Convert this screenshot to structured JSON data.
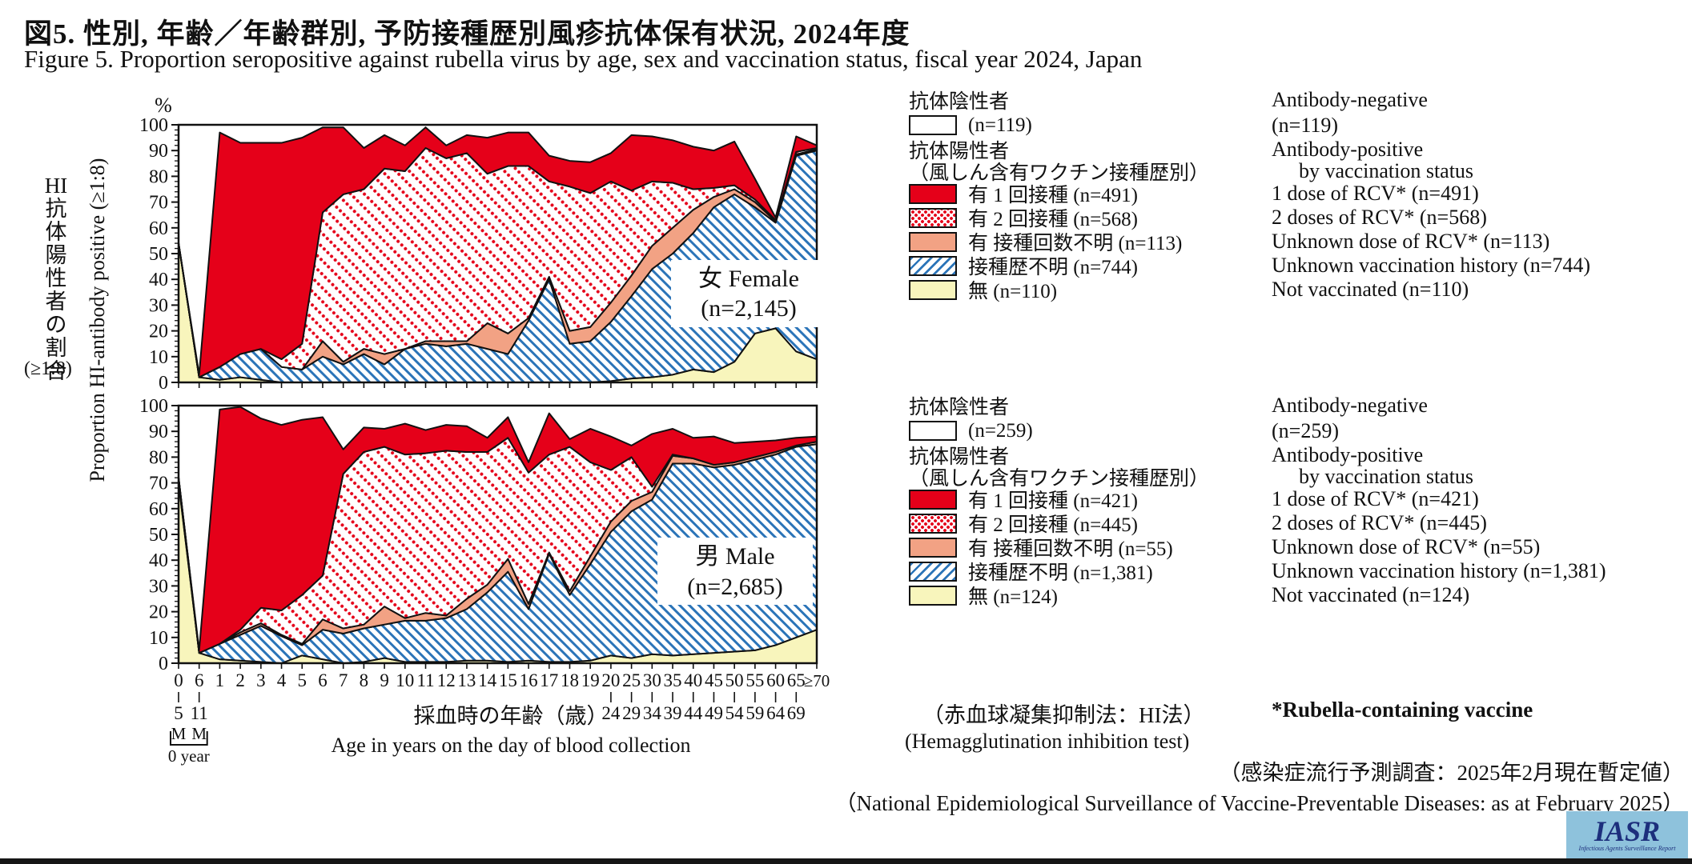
{
  "title": {
    "jp": "図5. 性別, 年齢／年齢群別, 予防接種歴別風疹抗体保有状況, 2024年度",
    "en": "Figure 5. Proportion seropositive against rubella virus by age, sex and vaccination status, fiscal year 2024, Japan"
  },
  "y_axis": {
    "unit": "%",
    "label_jp_head": "HI",
    "label_jp_chars": [
      "抗",
      "体",
      "陽",
      "性",
      "者",
      "の",
      "割",
      "合"
    ],
    "label_jp_suffix": "(≥1:8)",
    "label_en": "Proportion HI-antibody positive (≥1:8)",
    "max": 100,
    "tick_step": 10,
    "minor_step": 2
  },
  "x_axis": {
    "title_jp": "採血時の年齢（歳）",
    "title_en": "Age in years on the day of blood collection",
    "zero_year": "0 year",
    "month_mark": "M",
    "sub_labels": {
      "0": "5",
      "1": "11",
      "21": "24",
      "22": "29",
      "23": "34",
      "24": "39",
      "25": "44",
      "26": "49",
      "27": "54",
      "28": "59",
      "29": "64",
      "30": "69"
    }
  },
  "charts": [
    {
      "label": "女 Female",
      "n_label": "(n=2,145)"
    },
    {
      "label": "男 Male",
      "n_label": "(n=2,685)"
    }
  ],
  "legend": {
    "female": {
      "neg_jp": "抗体陰性者",
      "neg_en": "Antibody-negative",
      "neg_n_jp": "(n=119)",
      "neg_n_en": "(n=119)",
      "pos_jp": "抗体陽性者",
      "pos_en": "Antibody-positive",
      "pos_sub_jp": "（風しん含有ワクチン接種歴別）",
      "pos_sub_en": "by vaccination status",
      "items": [
        {
          "swatch": "red-solid",
          "jp": "有 1 回接種 (n=491)",
          "en": "1 dose of RCV* (n=491)"
        },
        {
          "swatch": "red-dots",
          "jp": "有 2 回接種 (n=568)",
          "en": "2 doses of RCV* (n=568)"
        },
        {
          "swatch": "salmon",
          "jp": "有 接種回数不明 (n=113)",
          "en": "Unknown dose of RCV* (n=113)"
        },
        {
          "swatch": "blue-hatch",
          "jp": "接種歴不明 (n=744)",
          "en": "Unknown vaccination history (n=744)"
        },
        {
          "swatch": "yellow",
          "jp": "無 (n=110)",
          "en": "Not vaccinated (n=110)"
        }
      ]
    },
    "male": {
      "neg_jp": "抗体陰性者",
      "neg_en": "Antibody-negative",
      "neg_n_jp": "(n=259)",
      "neg_n_en": "(n=259)",
      "pos_jp": "抗体陽性者",
      "pos_en": "Antibody-positive",
      "pos_sub_jp": "（風しん含有ワクチン接種歴別）",
      "pos_sub_en": "by vaccination status",
      "items": [
        {
          "swatch": "red-solid",
          "jp": "有 1 回接種 (n=421)",
          "en": "1 dose of RCV* (n=421)"
        },
        {
          "swatch": "red-dots",
          "jp": "有 2 回接種 (n=445)",
          "en": "2 doses of RCV* (n=445)"
        },
        {
          "swatch": "salmon",
          "jp": "有 接種回数不明 (n=55)",
          "en": "Unknown dose of RCV* (n=55)"
        },
        {
          "swatch": "blue-hatch",
          "jp": "接種歴不明 (n=1,381)",
          "en": "Unknown vaccination history (n=1,381)"
        },
        {
          "swatch": "yellow",
          "jp": "無 (n=124)",
          "en": "Not vaccinated (n=124)"
        }
      ]
    },
    "note_hi_jp": "（赤血球凝集抑制法：HI法）",
    "note_hi_en": "(Hemagglutination inhibition test)",
    "note_rcv": "*Rubella-containing vaccine"
  },
  "footer": {
    "jp": "（感染症流行予測調査：2025年2月現在暫定値）",
    "en": "（National Epidemiological Surveillance of Vaccine-Preventable Diseases: as at February 2025）"
  },
  "logo": {
    "text": "IASR",
    "subtext": "Infectious Agents Surveillance Report"
  },
  "colors": {
    "one_dose_red": "#e50019",
    "unknown_dose_salmon": "#f2a284",
    "not_vaccinated_yellow": "#f8f5bc",
    "hatch_blue": "#2b74b8",
    "outline": "#111111",
    "logo_bg": "#8ec2dc",
    "logo_text": "#1d2f7c"
  },
  "chart_data": [
    {
      "type": "area",
      "title": "女 Female (n=2,145)",
      "stack_order": "bottom-to-top",
      "categories": [
        "0",
        "6",
        "1",
        "2",
        "3",
        "4",
        "5",
        "6",
        "7",
        "8",
        "9",
        "10",
        "11",
        "12",
        "13",
        "14",
        "15",
        "16",
        "17",
        "18",
        "19",
        "20",
        "25",
        "30",
        "35",
        "40",
        "45",
        "50",
        "55",
        "60",
        "65",
        "≥70"
      ],
      "category_notes": "first two categories are 0-5 months and 6-11 months of age; 20+ are 5-year groups (20-24 ... 65-69, ≥70)",
      "ylabel": "Proportion HI-antibody positive (≥1:8) %",
      "ylim": [
        0,
        100
      ],
      "series": [
        {
          "name": "Not vaccinated",
          "values": [
            54,
            2,
            1,
            2,
            1,
            0,
            0,
            0,
            0,
            0,
            0,
            0,
            0,
            0,
            0,
            0,
            0,
            0,
            0,
            0,
            0,
            0.5,
            1.5,
            2,
            3,
            5,
            4,
            8,
            19,
            21,
            12,
            9
          ]
        },
        {
          "name": "Unknown vaccination history",
          "values": [
            0,
            0,
            5,
            9,
            12,
            6,
            5,
            10,
            7,
            11,
            7,
            13,
            15,
            14,
            15,
            13,
            11,
            24,
            40,
            15,
            16,
            23,
            32,
            42,
            47,
            53,
            64,
            65,
            49,
            41,
            76,
            81
          ]
        },
        {
          "name": "Unknown dose of RCV",
          "values": [
            0,
            0,
            0,
            0,
            0,
            0,
            0,
            6,
            1,
            2,
            4,
            0,
            1,
            2,
            1,
            10,
            8,
            1,
            1,
            5,
            5.5,
            7.5,
            8,
            9,
            10,
            9,
            4,
            2,
            2,
            0.5,
            0.5,
            0.5
          ]
        },
        {
          "name": "2 doses of RCV",
          "values": [
            0,
            0,
            0,
            0,
            0,
            3,
            10,
            50,
            65,
            62,
            72,
            69,
            75,
            71,
            73,
            58,
            65,
            59,
            37,
            56,
            52,
            47,
            33,
            25,
            17.5,
            8,
            3.5,
            1.5,
            1,
            0.5,
            1,
            0.5
          ]
        },
        {
          "name": "1 dose of RCV",
          "values": [
            0,
            1,
            91,
            82,
            80,
            84,
            80,
            33,
            26,
            16,
            13,
            10,
            8,
            5,
            7,
            14,
            13,
            13,
            10,
            10,
            12,
            11,
            21.5,
            17.5,
            16.5,
            16.5,
            14.5,
            17,
            8,
            1,
            6,
            1
          ]
        }
      ]
    },
    {
      "type": "area",
      "title": "男 Male (n=2,685)",
      "stack_order": "bottom-to-top",
      "categories": [
        "0",
        "6",
        "1",
        "2",
        "3",
        "4",
        "5",
        "6",
        "7",
        "8",
        "9",
        "10",
        "11",
        "12",
        "13",
        "14",
        "15",
        "16",
        "17",
        "18",
        "19",
        "20",
        "25",
        "30",
        "35",
        "40",
        "45",
        "50",
        "55",
        "60",
        "65",
        "≥70"
      ],
      "category_notes": "first two categories are 0-5 months and 6-11 months of age; 20+ are 5-year groups (20-24 ... 65-69, ≥70)",
      "ylabel": "Proportion HI-antibody positive (≥1:8) %",
      "ylim": [
        0,
        100
      ],
      "series": [
        {
          "name": "Not vaccinated",
          "values": [
            70,
            4,
            1.5,
            1,
            0.5,
            0,
            3,
            1.5,
            0,
            0.5,
            2,
            0.5,
            0.5,
            0.5,
            1,
            1,
            0.5,
            1,
            0.5,
            0.5,
            1,
            3,
            2,
            3.5,
            3,
            3.5,
            4,
            4.5,
            5,
            7,
            10,
            13
          ]
        },
        {
          "name": "Unknown vaccination history",
          "values": [
            2,
            0,
            6,
            10,
            14,
            10.5,
            4,
            11.5,
            11.5,
            13,
            13,
            16,
            16,
            17,
            20,
            26.5,
            35,
            20,
            42,
            26,
            37.5,
            48,
            57,
            60,
            74.5,
            74,
            72,
            72.5,
            74,
            74,
            74,
            72
          ]
        },
        {
          "name": "Unknown dose of RCV",
          "values": [
            0,
            0,
            0,
            1,
            1,
            0.5,
            0.5,
            4,
            2,
            1.5,
            7,
            1,
            3,
            1,
            4,
            3,
            5,
            2,
            0.5,
            1.5,
            3,
            4,
            4,
            3,
            3,
            2,
            1,
            1,
            1,
            1,
            0.5,
            1
          ]
        },
        {
          "name": "2 doses of RCV",
          "values": [
            0,
            0,
            0,
            1,
            6,
            9.5,
            19,
            17,
            60,
            67,
            62,
            63.5,
            62,
            64,
            57,
            51.5,
            47,
            51,
            38,
            56,
            36.5,
            20,
            17,
            2,
            0.5,
            0,
            0,
            0,
            0,
            0,
            0,
            0
          ]
        },
        {
          "name": "1 dose of RCV",
          "values": [
            0,
            1,
            91,
            86.5,
            73.5,
            72,
            68,
            61.5,
            9.5,
            9.5,
            7,
            12,
            9,
            10,
            10,
            5.5,
            8,
            4,
            16,
            3,
            13,
            13,
            4.5,
            20.5,
            10,
            8,
            11,
            7.5,
            6,
            4.5,
            3,
            2
          ]
        }
      ]
    }
  ]
}
